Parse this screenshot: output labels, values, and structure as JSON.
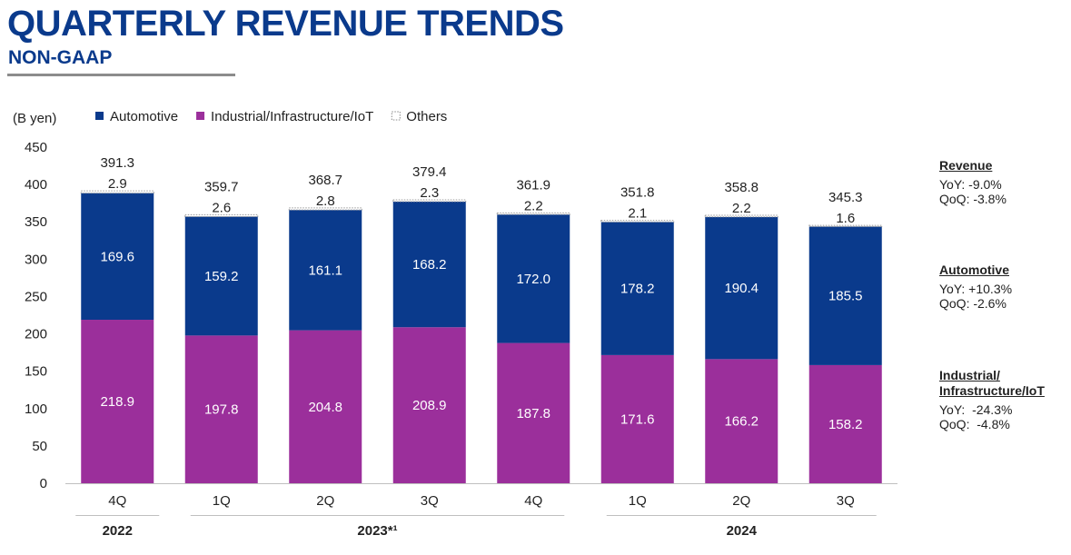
{
  "header": {
    "title": "QUARTERLY REVENUE TRENDS",
    "subtitle": "NON-GAAP"
  },
  "chart_data": {
    "type": "bar",
    "stacked": true,
    "unit_label": "(B yen)",
    "ylim": [
      0,
      450
    ],
    "yticks": [
      0,
      50,
      100,
      150,
      200,
      250,
      300,
      350,
      400,
      450
    ],
    "categories": [
      "4Q",
      "1Q",
      "2Q",
      "3Q",
      "4Q",
      "1Q",
      "2Q",
      "3Q"
    ],
    "year_groups": [
      {
        "label": "2022",
        "start": 0,
        "end": 0
      },
      {
        "label": "2023*¹",
        "start": 1,
        "end": 4
      },
      {
        "label": "2024",
        "start": 5,
        "end": 7
      }
    ],
    "series": [
      {
        "name": "Industrial/Infrastructure/IoT",
        "color": "#9b2f9b",
        "values": [
          218.9,
          197.8,
          204.8,
          208.9,
          187.8,
          171.6,
          166.2,
          158.2
        ]
      },
      {
        "name": "Automotive",
        "color": "#0a3a8c",
        "values": [
          169.6,
          159.2,
          161.1,
          168.2,
          172.0,
          178.2,
          190.4,
          185.5
        ]
      },
      {
        "name": "Others",
        "color": "#ffffff",
        "values": [
          2.9,
          2.6,
          2.8,
          2.3,
          2.2,
          2.1,
          2.2,
          1.6
        ]
      }
    ],
    "value_labels": {
      "Industrial/Infrastructure/IoT": [
        "218.9",
        "197.8",
        "204.8",
        "208.9",
        "187.8",
        "171.6",
        "166.2",
        "158.2"
      ],
      "Automotive": [
        "169.6",
        "159.2",
        "161.1",
        "168.2",
        "172.0",
        "178.2",
        "190.4",
        "185.5"
      ],
      "Others": [
        "2.9",
        "2.6",
        "2.8",
        "2.3",
        "2.2",
        "2.1",
        "2.2",
        "1.6"
      ]
    },
    "totals": [
      "391.3",
      "359.7",
      "368.7",
      "379.4",
      "361.9",
      "351.8",
      "358.8",
      "345.3"
    ],
    "legend": [
      {
        "name": "Automotive",
        "color": "#0a3a8c"
      },
      {
        "name": "Industrial/Infrastructure/IoT",
        "color": "#9b2f9b"
      },
      {
        "name": "Others",
        "color": "#ffffff"
      }
    ],
    "legend_position": "top-left",
    "grid": false
  },
  "sidebar": [
    {
      "heading": [
        "Revenue"
      ],
      "lines": [
        "YoY: -9.0%",
        "QoQ: -3.8%"
      ]
    },
    {
      "heading": [
        "Automotive"
      ],
      "lines": [
        "YoY: +10.3%",
        "QoQ: -2.6%"
      ]
    },
    {
      "heading": [
        "Industrial/",
        "Infrastructure/IoT"
      ],
      "lines": [
        "YoY:  -24.3%",
        "QoQ:  -4.8%"
      ]
    }
  ]
}
